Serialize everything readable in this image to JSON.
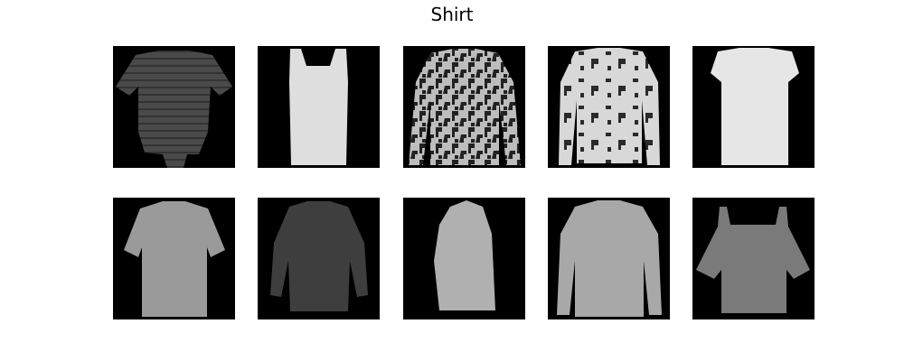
{
  "title": "Shirt"
}
